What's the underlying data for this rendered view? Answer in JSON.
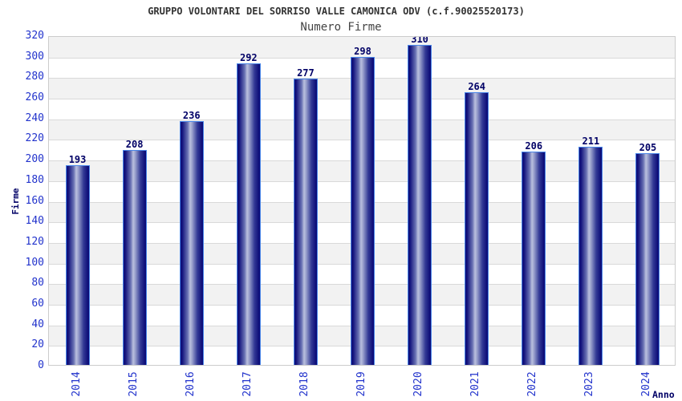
{
  "page": {
    "background": "#ffffff"
  },
  "chart_data": {
    "type": "bar",
    "title": "GRUPPO VOLONTARI DEL SORRISO VALLE CAMONICA ODV (c.f.90025520173)",
    "subtitle": "Numero Firme",
    "xlabel": "Anno",
    "ylabel": "Firme",
    "categories": [
      "2014",
      "2015",
      "2016",
      "2017",
      "2018",
      "2019",
      "2020",
      "2021",
      "2022",
      "2023",
      "2024"
    ],
    "values": [
      193,
      208,
      236,
      292,
      277,
      298,
      310,
      264,
      206,
      211,
      205
    ],
    "ylim": [
      0,
      320
    ],
    "ytick_step": 20,
    "yticks": [
      320,
      300,
      280,
      260,
      240,
      220,
      200,
      180,
      160,
      140,
      120,
      100,
      80,
      60,
      40,
      20,
      0
    ],
    "grid": "horizontal",
    "legend": "none",
    "plot_bands": "alternating-gray-white",
    "colors": {
      "bar_dark": "#0d0d78",
      "bar_mid": "#6a72b4",
      "bar_light": "#bac0de",
      "bar_border": "#4a86e8",
      "tick_label": "#2233cc",
      "value_label": "#000066",
      "axis_title": "#000066",
      "title": "#333333",
      "subtitle": "#444444",
      "band_gray": "#f2f2f2",
      "band_white": "#ffffff",
      "gridline": "#d9d9d9",
      "plot_border": "#cccccc"
    }
  }
}
